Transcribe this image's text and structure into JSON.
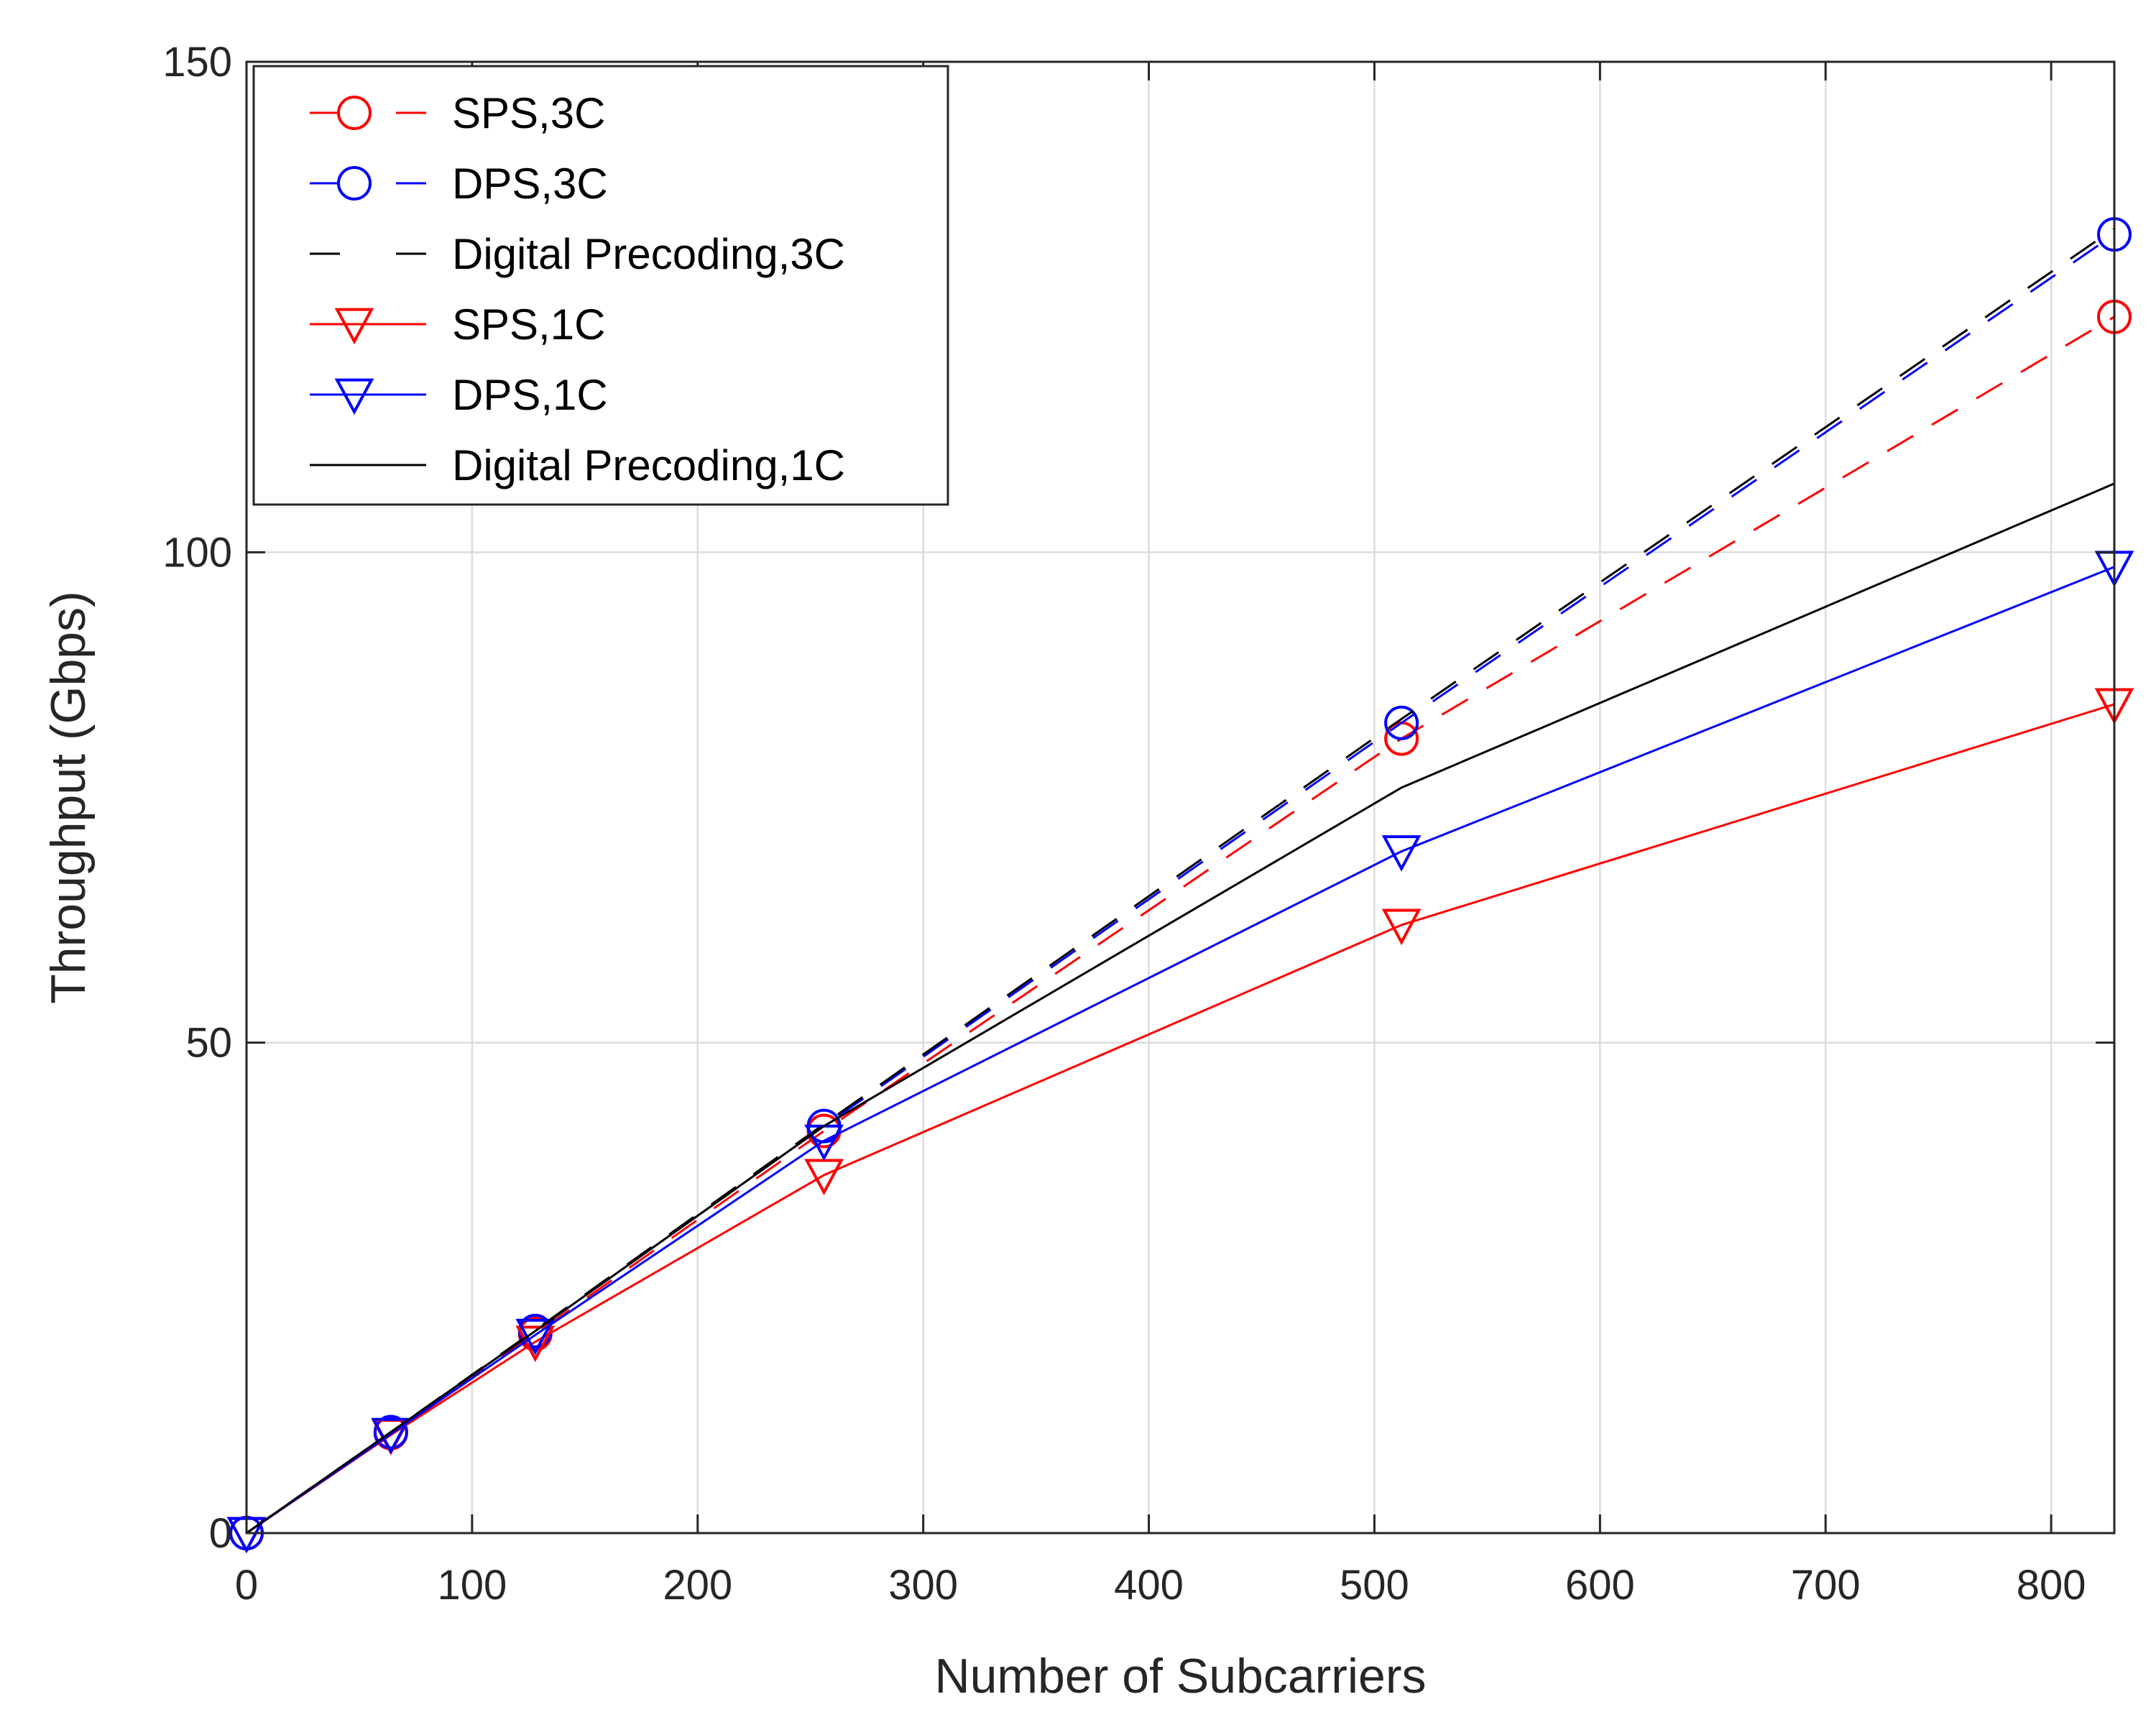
{
  "chart_data": {
    "type": "line",
    "title": "",
    "xlabel": "Number of Subcarriers",
    "ylabel": "Throughput (Gbps)",
    "xlim": [
      0,
      828
    ],
    "ylim": [
      0,
      150
    ],
    "xticks": [
      0,
      100,
      200,
      300,
      400,
      500,
      600,
      700,
      800
    ],
    "yticks": [
      0,
      50,
      100,
      150
    ],
    "xtick_labels": [
      "0",
      "100",
      "200",
      "300",
      "400",
      "500",
      "600",
      "700",
      "800"
    ],
    "ytick_labels": [
      "0",
      "50",
      "100",
      "150"
    ],
    "grid": true,
    "legend_position": "top-left",
    "x": [
      0,
      64,
      128,
      256,
      512,
      828
    ],
    "series": [
      {
        "name": "SPS,3C",
        "color": "#ff0000",
        "dash": "dashed",
        "marker": "circle",
        "values": [
          0,
          10.2,
          20.3,
          41.0,
          81.0,
          124.0
        ]
      },
      {
        "name": "DPS,3C",
        "color": "#0000ff",
        "dash": "dashed",
        "marker": "circle",
        "values": [
          0,
          10.3,
          20.6,
          41.5,
          82.6,
          132.4
        ]
      },
      {
        "name": "Digital Precoding,3C",
        "color": "#000000",
        "dash": "dashed",
        "marker": "none",
        "values": [
          0,
          10.3,
          20.7,
          41.7,
          83.0,
          133.0
        ]
      },
      {
        "name": "SPS,1C",
        "color": "#ff0000",
        "dash": "solid",
        "marker": "triangle-down",
        "values": [
          0,
          10.0,
          19.5,
          36.5,
          62.0,
          84.5
        ]
      },
      {
        "name": "DPS,1C",
        "color": "#0000ff",
        "dash": "solid",
        "marker": "triangle-down",
        "values": [
          0,
          10.1,
          20.2,
          40.0,
          69.5,
          98.5
        ]
      },
      {
        "name": "Digital Precoding,1C",
        "color": "#000000",
        "dash": "solid",
        "marker": "none",
        "values": [
          0,
          10.3,
          20.6,
          41.5,
          76.0,
          107.0
        ]
      }
    ]
  }
}
